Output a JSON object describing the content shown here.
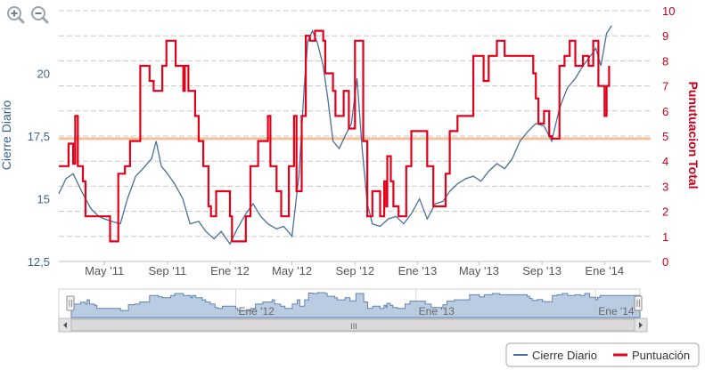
{
  "zoom": {
    "in_icon": "zoom-in-icon",
    "out_icon": "zoom-out-icon"
  },
  "colors": {
    "price": "#4a6f99",
    "score": "#e3001b",
    "reference_line": "#f2c09c",
    "grid": "#c8c8c8",
    "navigator_fill": "#a9bfd9",
    "navigator_line": "#5f84b5",
    "left_axis_text": "#3a6390",
    "right_axis_text": "#c8001b"
  },
  "chart_data": {
    "type": "line",
    "title": "",
    "x_ticks": [
      "May '11",
      "Sep '11",
      "Ene '12",
      "May '12",
      "Sep '12",
      "Ene '13",
      "May '13",
      "Sep '13",
      "Ene '14"
    ],
    "y_left": {
      "label": "Cierre Diario",
      "ticks": [
        "12,5",
        "15",
        "17,5",
        "20"
      ],
      "range": [
        12.5,
        22.5
      ]
    },
    "y_right": {
      "label": "Punutuacion Total",
      "ticks": [
        "0",
        "1",
        "2",
        "3",
        "4",
        "5",
        "6",
        "7",
        "8",
        "9",
        "10"
      ],
      "range": [
        0,
        10
      ]
    },
    "reference_line": {
      "axis": "right",
      "value": 4.9
    },
    "x_range": [
      "2011-02-01",
      "2014-04-01"
    ],
    "series": [
      {
        "name": "Cierre Diario",
        "axis": "left",
        "points": [
          [
            "2011-02-01",
            15.2
          ],
          [
            "2011-02-15",
            15.8
          ],
          [
            "2011-03-01",
            16.0
          ],
          [
            "2011-03-20",
            15.2
          ],
          [
            "2011-04-05",
            14.6
          ],
          [
            "2011-04-20",
            14.3
          ],
          [
            "2011-05-01",
            14.2
          ],
          [
            "2011-05-15",
            14.1
          ],
          [
            "2011-06-01",
            14.0
          ],
          [
            "2011-06-15",
            15.0
          ],
          [
            "2011-07-01",
            15.9
          ],
          [
            "2011-07-15",
            16.2
          ],
          [
            "2011-08-01",
            16.6
          ],
          [
            "2011-08-10",
            17.3
          ],
          [
            "2011-08-20",
            16.3
          ],
          [
            "2011-09-01",
            16.0
          ],
          [
            "2011-09-15",
            15.6
          ],
          [
            "2011-10-01",
            15.0
          ],
          [
            "2011-10-15",
            14.0
          ],
          [
            "2011-11-01",
            14.1
          ],
          [
            "2011-11-15",
            13.7
          ],
          [
            "2011-12-01",
            13.4
          ],
          [
            "2011-12-15",
            13.7
          ],
          [
            "2012-01-01",
            13.2
          ],
          [
            "2012-01-15",
            13.8
          ],
          [
            "2012-02-01",
            14.4
          ],
          [
            "2012-02-15",
            14.8
          ],
          [
            "2012-03-01",
            14.3
          ],
          [
            "2012-03-15",
            14.0
          ],
          [
            "2012-04-01",
            13.8
          ],
          [
            "2012-04-15",
            13.9
          ],
          [
            "2012-05-01",
            13.5
          ],
          [
            "2012-05-15",
            16.0
          ],
          [
            "2012-05-25",
            19.5
          ],
          [
            "2012-06-01",
            21.3
          ],
          [
            "2012-06-10",
            21.7
          ],
          [
            "2012-06-20",
            21.2
          ],
          [
            "2012-07-01",
            20.3
          ],
          [
            "2012-07-10",
            19.0
          ],
          [
            "2012-07-20",
            17.3
          ],
          [
            "2012-08-01",
            17.0
          ],
          [
            "2012-08-15",
            17.6
          ],
          [
            "2012-08-25",
            18.0
          ],
          [
            "2012-09-05",
            19.8
          ],
          [
            "2012-09-15",
            17.0
          ],
          [
            "2012-09-25",
            14.8
          ],
          [
            "2012-10-05",
            14.0
          ],
          [
            "2012-10-20",
            13.9
          ],
          [
            "2012-11-05",
            14.2
          ],
          [
            "2012-11-20",
            14.3
          ],
          [
            "2012-12-05",
            14.0
          ],
          [
            "2012-12-20",
            14.4
          ],
          [
            "2013-01-05",
            15.0
          ],
          [
            "2013-01-20",
            14.2
          ],
          [
            "2013-02-05",
            14.8
          ],
          [
            "2013-02-20",
            14.9
          ],
          [
            "2013-03-05",
            15.3
          ],
          [
            "2013-03-20",
            15.6
          ],
          [
            "2013-04-05",
            15.8
          ],
          [
            "2013-04-20",
            15.9
          ],
          [
            "2013-05-05",
            15.7
          ],
          [
            "2013-05-20",
            16.1
          ],
          [
            "2013-06-05",
            16.4
          ],
          [
            "2013-06-20",
            16.2
          ],
          [
            "2013-07-05",
            16.6
          ],
          [
            "2013-07-20",
            17.3
          ],
          [
            "2013-08-05",
            17.7
          ],
          [
            "2013-08-20",
            18.0
          ],
          [
            "2013-09-05",
            17.9
          ],
          [
            "2013-09-20",
            17.3
          ],
          [
            "2013-10-05",
            18.6
          ],
          [
            "2013-10-20",
            19.4
          ],
          [
            "2013-11-05",
            19.8
          ],
          [
            "2013-11-20",
            20.3
          ],
          [
            "2013-12-05",
            20.7
          ],
          [
            "2013-12-15",
            21.0
          ],
          [
            "2013-12-25",
            20.3
          ],
          [
            "2014-01-05",
            21.6
          ],
          [
            "2014-01-15",
            21.9
          ]
        ]
      },
      {
        "name": "Puntuación",
        "axis": "right",
        "points": [
          [
            "2011-02-01",
            3.8
          ],
          [
            "2011-02-20",
            4.7
          ],
          [
            "2011-03-01",
            3.9
          ],
          [
            "2011-03-05",
            5.8
          ],
          [
            "2011-03-10",
            3.8
          ],
          [
            "2011-03-20",
            3.2
          ],
          [
            "2011-03-25",
            1.8
          ],
          [
            "2011-04-15",
            1.8
          ],
          [
            "2011-05-10",
            1.8
          ],
          [
            "2011-05-12",
            0.8
          ],
          [
            "2011-05-25",
            0.8
          ],
          [
            "2011-05-28",
            3.5
          ],
          [
            "2011-06-10",
            3.8
          ],
          [
            "2011-06-20",
            4.8
          ],
          [
            "2011-07-01",
            4.8
          ],
          [
            "2011-07-10",
            7.8
          ],
          [
            "2011-07-25",
            7.8
          ],
          [
            "2011-07-28",
            7.2
          ],
          [
            "2011-08-05",
            6.8
          ],
          [
            "2011-08-20",
            6.8
          ],
          [
            "2011-08-22",
            7.8
          ],
          [
            "2011-08-30",
            8.8
          ],
          [
            "2011-09-15",
            8.8
          ],
          [
            "2011-09-17",
            7.8
          ],
          [
            "2011-10-01",
            7.8
          ],
          [
            "2011-10-02",
            6.8
          ],
          [
            "2011-10-05",
            7.8
          ],
          [
            "2011-10-12",
            6.8
          ],
          [
            "2011-10-25",
            5.8
          ],
          [
            "2011-11-01",
            4.8
          ],
          [
            "2011-11-10",
            3.8
          ],
          [
            "2011-11-20",
            2.2
          ],
          [
            "2011-11-25",
            1.8
          ],
          [
            "2011-12-05",
            2.8
          ],
          [
            "2011-12-20",
            2.8
          ],
          [
            "2012-01-01",
            1.8
          ],
          [
            "2012-01-05",
            0.8
          ],
          [
            "2012-01-20",
            0.8
          ],
          [
            "2012-02-01",
            1.8
          ],
          [
            "2012-02-10",
            3.8
          ],
          [
            "2012-02-25",
            4.8
          ],
          [
            "2012-03-15",
            5.8
          ],
          [
            "2012-03-20",
            3.8
          ],
          [
            "2012-04-01",
            2.8
          ],
          [
            "2012-04-10",
            1.8
          ],
          [
            "2012-04-25",
            3.8
          ],
          [
            "2012-05-05",
            5.8
          ],
          [
            "2012-05-10",
            2.8
          ],
          [
            "2012-05-20",
            5.8
          ],
          [
            "2012-05-28",
            9.0
          ],
          [
            "2012-06-05",
            8.8
          ],
          [
            "2012-06-15",
            9.2
          ],
          [
            "2012-06-20",
            9.2
          ],
          [
            "2012-07-01",
            8.8
          ],
          [
            "2012-07-05",
            7.5
          ],
          [
            "2012-07-20",
            6.8
          ],
          [
            "2012-07-25",
            5.8
          ],
          [
            "2012-08-05",
            5.8
          ],
          [
            "2012-08-10",
            6.8
          ],
          [
            "2012-08-20",
            5.3
          ],
          [
            "2012-09-01",
            8.8
          ],
          [
            "2012-09-15",
            8.8
          ],
          [
            "2012-09-17",
            4.8
          ],
          [
            "2012-09-25",
            1.8
          ],
          [
            "2012-10-05",
            2.8
          ],
          [
            "2012-10-20",
            1.8
          ],
          [
            "2012-10-28",
            3.2
          ],
          [
            "2012-11-01",
            2.2
          ],
          [
            "2012-11-03",
            4.2
          ],
          [
            "2012-11-10",
            3.2
          ],
          [
            "2012-11-15",
            2.2
          ],
          [
            "2012-11-25",
            1.8
          ],
          [
            "2012-12-10",
            3.8
          ],
          [
            "2012-12-15",
            3.8
          ],
          [
            "2012-12-20",
            5.2
          ],
          [
            "2013-01-10",
            5.2
          ],
          [
            "2013-01-20",
            3.8
          ],
          [
            "2013-02-01",
            2.2
          ],
          [
            "2013-02-20",
            2.2
          ],
          [
            "2013-02-25",
            3.5
          ],
          [
            "2013-03-05",
            5.2
          ],
          [
            "2013-03-20",
            5.8
          ],
          [
            "2013-04-15",
            5.8
          ],
          [
            "2013-04-20",
            8.2
          ],
          [
            "2013-05-05",
            8.2
          ],
          [
            "2013-05-10",
            7.2
          ],
          [
            "2013-05-20",
            8.2
          ],
          [
            "2013-06-01",
            8.2
          ],
          [
            "2013-06-05",
            8.8
          ],
          [
            "2013-06-20",
            8.2
          ],
          [
            "2013-07-05",
            8.2
          ],
          [
            "2013-08-01",
            8.2
          ],
          [
            "2013-08-15",
            7.5
          ],
          [
            "2013-08-20",
            6.5
          ],
          [
            "2013-08-25",
            5.5
          ],
          [
            "2013-09-05",
            6.0
          ],
          [
            "2013-09-15",
            5.0
          ],
          [
            "2013-09-20",
            4.9
          ],
          [
            "2013-10-05",
            7.8
          ],
          [
            "2013-10-15",
            8.2
          ],
          [
            "2013-10-25",
            8.8
          ],
          [
            "2013-11-05",
            7.8
          ],
          [
            "2013-11-20",
            8.2
          ],
          [
            "2013-12-01",
            7.8
          ],
          [
            "2013-12-10",
            8.8
          ],
          [
            "2013-12-20",
            7.0
          ],
          [
            "2014-01-01",
            5.8
          ],
          [
            "2014-01-05",
            7.0
          ],
          [
            "2014-01-10",
            7.8
          ]
        ]
      }
    ]
  },
  "navigator": {
    "x_ticks": [
      "Ene '12",
      "Ene '13",
      "Ene '14"
    ],
    "scroll_grip": "III"
  },
  "legend": {
    "items": [
      {
        "label": "Cierre Diario",
        "color": "#4a6f99"
      },
      {
        "label": "Puntuación",
        "color": "#e3001b"
      }
    ]
  }
}
